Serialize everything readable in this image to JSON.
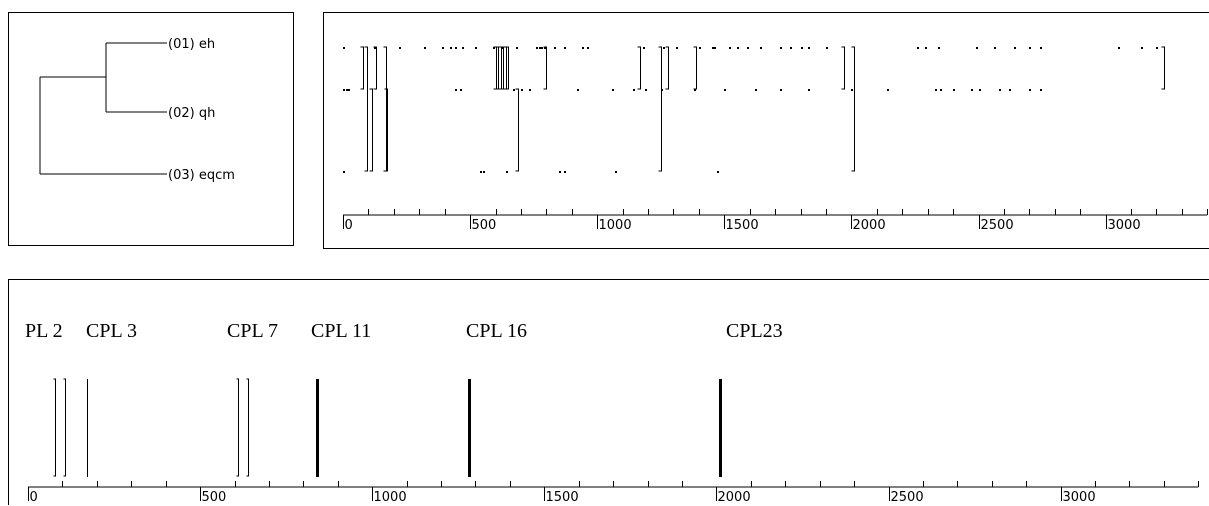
{
  "tree": {
    "leaves": [
      {
        "label": "(01) eh"
      },
      {
        "label": "(02) qh"
      },
      {
        "label": "(03) eqcm"
      }
    ]
  },
  "top_axis": {
    "ticks": [
      "0",
      "500",
      "1000",
      "1500",
      "2000",
      "2500",
      "3000"
    ],
    "tick_values": [
      0,
      500,
      1000,
      1500,
      2000,
      2500,
      3000
    ],
    "range": [
      0,
      3400
    ]
  },
  "bottom_axis": {
    "ticks": [
      "0",
      "500",
      "1000",
      "1500",
      "2000",
      "2500",
      "3000"
    ],
    "tick_values": [
      0,
      500,
      1000,
      1500,
      2000,
      2500,
      3000
    ],
    "range": [
      0,
      3400
    ]
  },
  "clusters": [
    {
      "label": "PL 2",
      "position": 80
    },
    {
      "label": "CPL 3",
      "position": 170
    },
    {
      "label": "CPL 7",
      "position": 630
    },
    {
      "label": "CPL 11",
      "position": 840
    },
    {
      "label": "CPL 16",
      "position": 1280
    },
    {
      "label": "CPL23",
      "position": 2010
    }
  ],
  "bottom_bars": [
    {
      "x": 78,
      "kind": "bracket"
    },
    {
      "x": 108,
      "kind": "bracket"
    },
    {
      "x": 170,
      "kind": "single"
    },
    {
      "x": 610,
      "kind": "bracket"
    },
    {
      "x": 640,
      "kind": "bracket"
    },
    {
      "x": 840,
      "kind": "bold"
    },
    {
      "x": 1280,
      "kind": "bold"
    },
    {
      "x": 2010,
      "kind": "bold"
    }
  ]
}
